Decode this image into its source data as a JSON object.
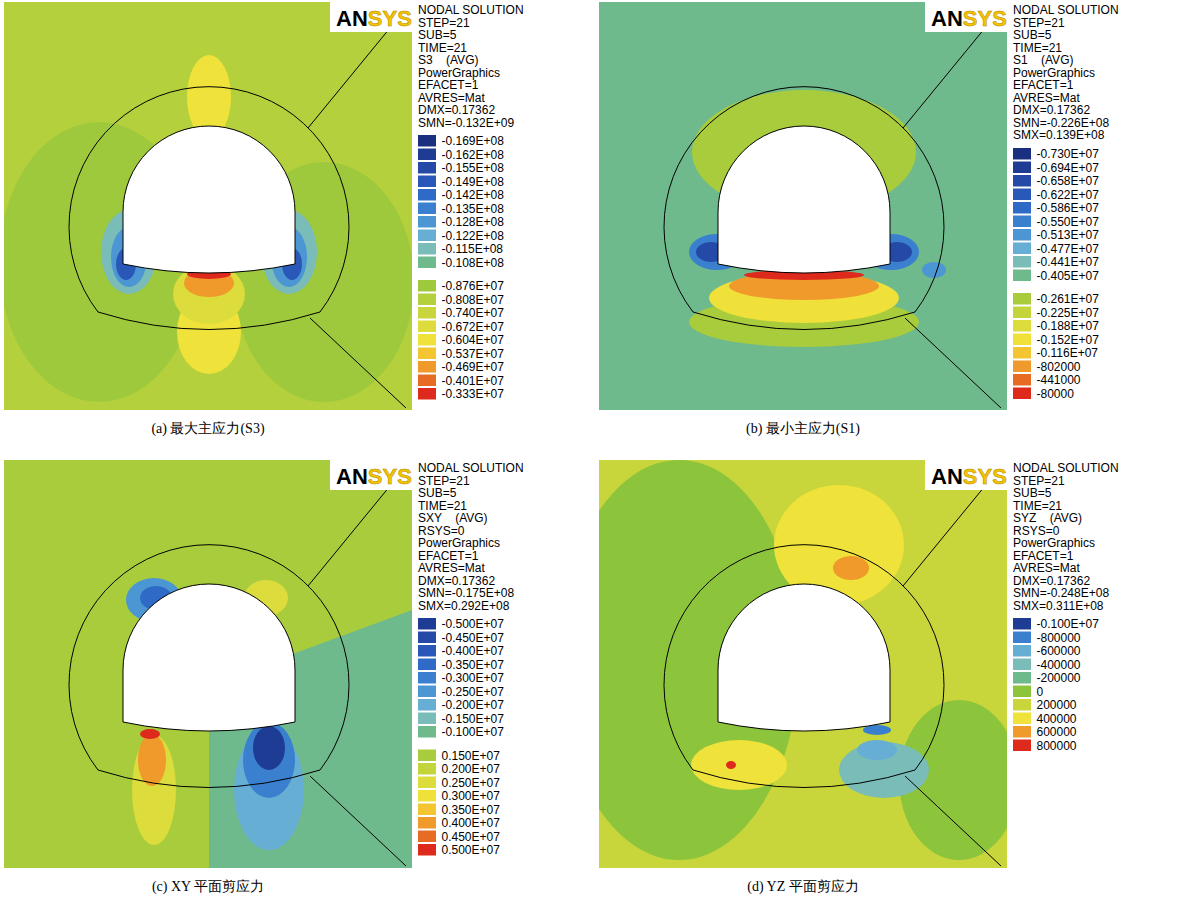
{
  "chart_data": [
    {
      "type": "contour",
      "logo": "ANSYS",
      "header": [
        "NODAL SOLUTION",
        "STEP=21",
        "SUB=5",
        "TIME=21",
        "S3    (AVG)",
        "PowerGraphics",
        "EFACET=1",
        "AVRES=Mat",
        "DMX=0.17362",
        "SMN=-0.132E+09"
      ],
      "levels": [
        [
          {
            "value": -16900000,
            "label": "-0.169E+08",
            "color": "#1a2f80"
          },
          {
            "value": -16200000,
            "label": "-0.162E+08",
            "color": "#1f3c94"
          },
          {
            "value": -15500000,
            "label": "-0.155E+08",
            "color": "#2549a6"
          },
          {
            "value": -14900000,
            "label": "-0.149E+08",
            "color": "#2a58b8"
          },
          {
            "value": -14200000,
            "label": "-0.142E+08",
            "color": "#2f6bc6"
          },
          {
            "value": -13500000,
            "label": "-0.135E+08",
            "color": "#3a80cf"
          },
          {
            "value": -12800000,
            "label": "-0.128E+08",
            "color": "#4c97d3"
          },
          {
            "value": -12200000,
            "label": "-0.122E+08",
            "color": "#66aed3"
          },
          {
            "value": -11500000,
            "label": "-0.115E+08",
            "color": "#79bcb8"
          },
          {
            "value": -10800000,
            "label": "-0.108E+08",
            "color": "#6fba8c"
          }
        ],
        [
          {
            "value": -8760000,
            "label": "-0.876E+07",
            "color": "#9fc93c"
          },
          {
            "value": -8080000,
            "label": "-0.808E+07",
            "color": "#b4d03c"
          },
          {
            "value": -7400000,
            "label": "-0.740E+07",
            "color": "#c8d63c"
          },
          {
            "value": -6720000,
            "label": "-0.672E+07",
            "color": "#dcdc3c"
          },
          {
            "value": -6040000,
            "label": "-0.604E+07",
            "color": "#efe23a"
          },
          {
            "value": -5370000,
            "label": "-0.537E+07",
            "color": "#f3c531"
          },
          {
            "value": -4690000,
            "label": "-0.469E+07",
            "color": "#ef9a2b"
          },
          {
            "value": -4010000,
            "label": "-0.401E+07",
            "color": "#e86b23"
          },
          {
            "value": -3330000,
            "label": "-0.333E+07",
            "color": "#de2a1c"
          }
        ]
      ],
      "caption": "(a)  最大主应力(S3)"
    },
    {
      "type": "contour",
      "logo": "ANSYS",
      "header": [
        "NODAL SOLUTION",
        "STEP=21",
        "SUB=5",
        "TIME=21",
        "S1    (AVG)",
        "PowerGraphics",
        "EFACET=1",
        "AVRES=Mat",
        "DMX=0.17362",
        "SMN=-0.226E+08",
        "SMX=0.139E+08"
      ],
      "levels": [
        [
          {
            "value": -7300000,
            "label": "-0.730E+07",
            "color": "#1a2f80"
          },
          {
            "value": -6940000,
            "label": "-0.694E+07",
            "color": "#1f3c94"
          },
          {
            "value": -6580000,
            "label": "-0.658E+07",
            "color": "#2549a6"
          },
          {
            "value": -6220000,
            "label": "-0.622E+07",
            "color": "#2a58b8"
          },
          {
            "value": -5860000,
            "label": "-0.586E+07",
            "color": "#2f6bc6"
          },
          {
            "value": -5500000,
            "label": "-0.550E+07",
            "color": "#3a80cf"
          },
          {
            "value": -5130000,
            "label": "-0.513E+07",
            "color": "#4c97d3"
          },
          {
            "value": -4770000,
            "label": "-0.477E+07",
            "color": "#66aed3"
          },
          {
            "value": -4410000,
            "label": "-0.441E+07",
            "color": "#79bcb8"
          },
          {
            "value": -4050000,
            "label": "-0.405E+07",
            "color": "#6fba8c"
          }
        ],
        [
          {
            "value": -2610000,
            "label": "-0.261E+07",
            "color": "#a8cc3c"
          },
          {
            "value": -2250000,
            "label": "-0.225E+07",
            "color": "#c4d53c"
          },
          {
            "value": -1880000,
            "label": "-0.188E+07",
            "color": "#dcdc3c"
          },
          {
            "value": -1520000,
            "label": "-0.152E+07",
            "color": "#f0e03a"
          },
          {
            "value": -1160000,
            "label": "-0.116E+07",
            "color": "#f3c531"
          },
          {
            "value": -802000,
            "color": "#ef9a2b"
          },
          {
            "value": -441000,
            "color": "#e86b23"
          },
          {
            "value": -80000,
            "color": "#de2a1c"
          }
        ]
      ],
      "caption": "(b)  最小主应力(S1)"
    },
    {
      "type": "contour",
      "logo": "ANSYS",
      "header": [
        "NODAL SOLUTION",
        "STEP=21",
        "SUB=5",
        "TIME=21",
        "SXY    (AVG)",
        "RSYS=0",
        "PowerGraphics",
        "EFACET=1",
        "AVRES=Mat",
        "DMX=0.17362",
        "SMN=-0.175E+08",
        "SMX=0.292E+08"
      ],
      "levels": [
        [
          {
            "value": -5000000,
            "label": "-0.500E+07",
            "color": "#1f3c94"
          },
          {
            "value": -4500000,
            "label": "-0.450E+07",
            "color": "#2549a6"
          },
          {
            "value": -4000000,
            "label": "-0.400E+07",
            "color": "#2a58b8"
          },
          {
            "value": -3500000,
            "label": "-0.350E+07",
            "color": "#2f6bc6"
          },
          {
            "value": -3000000,
            "label": "-0.300E+07",
            "color": "#3a80cf"
          },
          {
            "value": -2500000,
            "label": "-0.250E+07",
            "color": "#4c97d3"
          },
          {
            "value": -2000000,
            "label": "-0.200E+07",
            "color": "#66aed3"
          },
          {
            "value": -1500000,
            "label": "-0.150E+07",
            "color": "#79bcb8"
          },
          {
            "value": -1000000,
            "label": "-0.100E+07",
            "color": "#6fba8c"
          }
        ],
        [
          {
            "value": 1500000,
            "label": "0.150E+07",
            "color": "#a8cc3c"
          },
          {
            "value": 2000000,
            "label": "0.200E+07",
            "color": "#c4d53c"
          },
          {
            "value": 2500000,
            "label": "0.250E+07",
            "color": "#dcdc3c"
          },
          {
            "value": 3000000,
            "label": "0.300E+07",
            "color": "#f0e03a"
          },
          {
            "value": 3500000,
            "label": "0.350E+07",
            "color": "#f3c531"
          },
          {
            "value": 4000000,
            "label": "0.400E+07",
            "color": "#ef9a2b"
          },
          {
            "value": 4500000,
            "label": "0.450E+07",
            "color": "#e86b23"
          },
          {
            "value": 5000000,
            "label": "0.500E+07",
            "color": "#de2a1c"
          }
        ]
      ],
      "caption": "(c) XY 平面剪应力"
    },
    {
      "type": "contour",
      "logo": "ANSYS",
      "header": [
        "NODAL SOLUTION",
        "STEP=21",
        "SUB=5",
        "TIME=21",
        "SYZ    (AVG)",
        "RSYS=0",
        "PowerGraphics",
        "EFACET=1",
        "AVRES=Mat",
        "DMX=0.17362",
        "SMN=-0.248E+08",
        "SMX=0.311E+08"
      ],
      "levels": [
        [
          {
            "value": -1000000,
            "label": "-0.100E+07",
            "color": "#1f3c94"
          },
          {
            "value": -800000,
            "color": "#3a80cf"
          },
          {
            "value": -600000,
            "color": "#66aed3"
          },
          {
            "value": -400000,
            "color": "#79bcb8"
          },
          {
            "value": -200000,
            "color": "#6fba8c"
          },
          {
            "value": 0,
            "color": "#8cc43c"
          },
          {
            "value": 200000,
            "color": "#c8d63c"
          },
          {
            "value": 400000,
            "color": "#efe23a"
          },
          {
            "value": 600000,
            "color": "#ef9a2b"
          },
          {
            "value": 800000,
            "color": "#de2a1c"
          }
        ]
      ],
      "caption": "(d) YZ 平面剪应力"
    }
  ]
}
